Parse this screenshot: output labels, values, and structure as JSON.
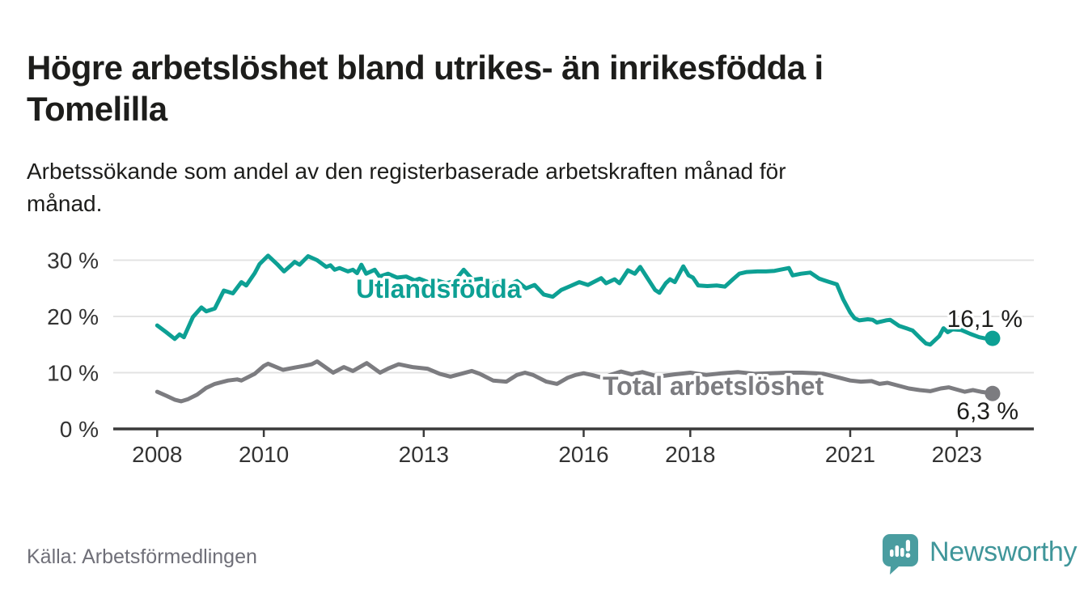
{
  "header": {
    "title": "Högre arbetslöshet bland utrikes- än inrikesfödda i\nTomelilla",
    "subtitle": "Arbetssökande som andel av den registerbaserade arbetskraften månad för\nmånad."
  },
  "footer": {
    "source": "Källa: Arbetsförmedlingen"
  },
  "branding": {
    "name": "Newsworthy",
    "logo_icon": "bar-chart-speech-bubble-icon",
    "logo_color": "#4a9da0",
    "name_color": "#40969a"
  },
  "chart_data": {
    "type": "line",
    "title": "Högre arbetslöshet bland utrikes- än inrikesfödda i Tomelilla",
    "xlabel": "",
    "ylabel": "Arbetssökande som andel av den registerbaserade arbetskraften",
    "grid": true,
    "legend_position": "inline-labels",
    "x_axis": {
      "unit": "year",
      "range": [
        2007.2,
        2024.4
      ],
      "ticks": [
        {
          "value": 2008,
          "label": "2008"
        },
        {
          "value": 2010,
          "label": "2010"
        },
        {
          "value": 2013,
          "label": "2013"
        },
        {
          "value": 2016,
          "label": "2016"
        },
        {
          "value": 2018,
          "label": "2018"
        },
        {
          "value": 2021,
          "label": "2021"
        },
        {
          "value": 2023,
          "label": "2023"
        }
      ]
    },
    "y_axis": {
      "unit": "%",
      "range": [
        0,
        32
      ],
      "ticks": [
        {
          "value": 0,
          "label": "0 %"
        },
        {
          "value": 10,
          "label": "10 %"
        },
        {
          "value": 20,
          "label": "20 %"
        },
        {
          "value": 30,
          "label": "30 %"
        }
      ]
    },
    "series": [
      {
        "name": "Utlandsfödda",
        "color": "#0da094",
        "end_value": 16.1,
        "end_label": "16,1 %",
        "points": [
          [
            2008.0,
            18.4
          ],
          [
            2008.17,
            17.2
          ],
          [
            2008.33,
            16.0
          ],
          [
            2008.42,
            16.8
          ],
          [
            2008.5,
            16.3
          ],
          [
            2008.67,
            19.9
          ],
          [
            2008.83,
            21.6
          ],
          [
            2008.92,
            20.9
          ],
          [
            2009.08,
            21.4
          ],
          [
            2009.25,
            24.6
          ],
          [
            2009.42,
            24.1
          ],
          [
            2009.58,
            26.1
          ],
          [
            2009.67,
            25.5
          ],
          [
            2009.83,
            27.7
          ],
          [
            2009.92,
            29.3
          ],
          [
            2010.08,
            30.8
          ],
          [
            2010.25,
            29.3
          ],
          [
            2010.38,
            28.0
          ],
          [
            2010.5,
            29.0
          ],
          [
            2010.58,
            29.7
          ],
          [
            2010.67,
            29.2
          ],
          [
            2010.83,
            30.7
          ],
          [
            2011.0,
            30.0
          ],
          [
            2011.17,
            28.8
          ],
          [
            2011.25,
            29.1
          ],
          [
            2011.33,
            28.3
          ],
          [
            2011.42,
            28.6
          ],
          [
            2011.58,
            28.0
          ],
          [
            2011.67,
            28.3
          ],
          [
            2011.75,
            27.7
          ],
          [
            2011.83,
            29.2
          ],
          [
            2011.92,
            27.6
          ],
          [
            2012.08,
            28.3
          ],
          [
            2012.17,
            27.1
          ],
          [
            2012.33,
            27.6
          ],
          [
            2012.5,
            26.9
          ],
          [
            2012.67,
            27.1
          ],
          [
            2012.83,
            26.4
          ],
          [
            2012.92,
            26.7
          ],
          [
            2013.08,
            26.1
          ],
          [
            2013.25,
            26.4
          ],
          [
            2013.42,
            25.9
          ],
          [
            2013.58,
            26.3
          ],
          [
            2013.75,
            28.3
          ],
          [
            2013.92,
            26.5
          ],
          [
            2014.08,
            26.7
          ],
          [
            2014.25,
            25.7
          ],
          [
            2014.42,
            26.1
          ],
          [
            2014.58,
            25.5
          ],
          [
            2014.75,
            26.3
          ],
          [
            2014.92,
            25.0
          ],
          [
            2015.08,
            25.6
          ],
          [
            2015.25,
            23.9
          ],
          [
            2015.42,
            23.5
          ],
          [
            2015.58,
            24.7
          ],
          [
            2015.75,
            25.4
          ],
          [
            2015.92,
            26.1
          ],
          [
            2016.08,
            25.6
          ],
          [
            2016.33,
            26.8
          ],
          [
            2016.42,
            25.9
          ],
          [
            2016.58,
            26.6
          ],
          [
            2016.67,
            25.9
          ],
          [
            2016.83,
            28.2
          ],
          [
            2016.96,
            27.6
          ],
          [
            2017.06,
            28.8
          ],
          [
            2017.19,
            26.9
          ],
          [
            2017.34,
            24.7
          ],
          [
            2017.42,
            24.2
          ],
          [
            2017.54,
            25.9
          ],
          [
            2017.62,
            26.6
          ],
          [
            2017.71,
            26.1
          ],
          [
            2017.87,
            28.9
          ],
          [
            2017.97,
            27.3
          ],
          [
            2018.05,
            26.9
          ],
          [
            2018.15,
            25.5
          ],
          [
            2018.32,
            25.4
          ],
          [
            2018.5,
            25.5
          ],
          [
            2018.65,
            25.3
          ],
          [
            2018.8,
            26.6
          ],
          [
            2018.92,
            27.6
          ],
          [
            2019.06,
            27.9
          ],
          [
            2019.26,
            28.0
          ],
          [
            2019.42,
            28.0
          ],
          [
            2019.58,
            28.1
          ],
          [
            2019.85,
            28.6
          ],
          [
            2019.92,
            27.3
          ],
          [
            2020.08,
            27.6
          ],
          [
            2020.25,
            27.8
          ],
          [
            2020.42,
            26.7
          ],
          [
            2020.58,
            26.2
          ],
          [
            2020.75,
            25.7
          ],
          [
            2020.87,
            23.0
          ],
          [
            2021.0,
            20.7
          ],
          [
            2021.08,
            19.7
          ],
          [
            2021.17,
            19.3
          ],
          [
            2021.33,
            19.5
          ],
          [
            2021.42,
            19.4
          ],
          [
            2021.5,
            18.9
          ],
          [
            2021.67,
            19.3
          ],
          [
            2021.75,
            19.4
          ],
          [
            2021.92,
            18.3
          ],
          [
            2022.08,
            17.8
          ],
          [
            2022.17,
            17.5
          ],
          [
            2022.33,
            16.0
          ],
          [
            2022.42,
            15.2
          ],
          [
            2022.5,
            15.0
          ],
          [
            2022.67,
            16.5
          ],
          [
            2022.75,
            17.9
          ],
          [
            2022.83,
            17.2
          ],
          [
            2022.92,
            17.7
          ],
          [
            2023.08,
            17.6
          ],
          [
            2023.25,
            16.9
          ],
          [
            2023.42,
            16.3
          ],
          [
            2023.58,
            16.0
          ],
          [
            2023.67,
            16.1
          ]
        ]
      },
      {
        "name": "Total arbetslöshet",
        "color": "#7c7c80",
        "end_value": 6.3,
        "end_label": "6,3 %",
        "points": [
          [
            2008.0,
            6.6
          ],
          [
            2008.17,
            5.9
          ],
          [
            2008.33,
            5.2
          ],
          [
            2008.45,
            4.9
          ],
          [
            2008.58,
            5.3
          ],
          [
            2008.75,
            6.1
          ],
          [
            2008.92,
            7.3
          ],
          [
            2009.08,
            8.0
          ],
          [
            2009.33,
            8.6
          ],
          [
            2009.5,
            8.8
          ],
          [
            2009.58,
            8.6
          ],
          [
            2009.83,
            9.8
          ],
          [
            2010.0,
            11.2
          ],
          [
            2010.08,
            11.6
          ],
          [
            2010.36,
            10.5
          ],
          [
            2010.58,
            10.9
          ],
          [
            2010.75,
            11.2
          ],
          [
            2010.9,
            11.5
          ],
          [
            2011.0,
            12.0
          ],
          [
            2011.15,
            11.0
          ],
          [
            2011.3,
            10.0
          ],
          [
            2011.5,
            11.0
          ],
          [
            2011.67,
            10.3
          ],
          [
            2011.93,
            11.7
          ],
          [
            2012.18,
            10.0
          ],
          [
            2012.35,
            10.8
          ],
          [
            2012.53,
            11.5
          ],
          [
            2012.79,
            11.0
          ],
          [
            2013.07,
            10.7
          ],
          [
            2013.3,
            9.8
          ],
          [
            2013.5,
            9.3
          ],
          [
            2013.7,
            9.8
          ],
          [
            2013.9,
            10.3
          ],
          [
            2014.05,
            9.8
          ],
          [
            2014.3,
            8.6
          ],
          [
            2014.55,
            8.4
          ],
          [
            2014.75,
            9.6
          ],
          [
            2014.9,
            10.0
          ],
          [
            2015.05,
            9.6
          ],
          [
            2015.3,
            8.4
          ],
          [
            2015.5,
            8.0
          ],
          [
            2015.7,
            9.1
          ],
          [
            2015.85,
            9.6
          ],
          [
            2016.0,
            9.9
          ],
          [
            2016.15,
            9.6
          ],
          [
            2016.35,
            9.1
          ],
          [
            2016.5,
            9.6
          ],
          [
            2016.7,
            10.2
          ],
          [
            2016.9,
            9.7
          ],
          [
            2017.1,
            10.1
          ],
          [
            2017.4,
            9.3
          ],
          [
            2017.7,
            9.7
          ],
          [
            2018.0,
            10.0
          ],
          [
            2018.3,
            9.6
          ],
          [
            2018.6,
            9.9
          ],
          [
            2018.9,
            10.1
          ],
          [
            2019.2,
            9.8
          ],
          [
            2019.5,
            9.9
          ],
          [
            2019.8,
            10.0
          ],
          [
            2020.1,
            10.0
          ],
          [
            2020.35,
            9.9
          ],
          [
            2020.5,
            9.8
          ],
          [
            2020.8,
            9.1
          ],
          [
            2021.0,
            8.6
          ],
          [
            2021.2,
            8.4
          ],
          [
            2021.4,
            8.5
          ],
          [
            2021.55,
            8.0
          ],
          [
            2021.7,
            8.2
          ],
          [
            2021.9,
            7.7
          ],
          [
            2022.1,
            7.2
          ],
          [
            2022.3,
            6.9
          ],
          [
            2022.5,
            6.7
          ],
          [
            2022.7,
            7.2
          ],
          [
            2022.85,
            7.4
          ],
          [
            2023.0,
            7.0
          ],
          [
            2023.15,
            6.6
          ],
          [
            2023.3,
            6.9
          ],
          [
            2023.45,
            6.6
          ],
          [
            2023.67,
            6.3
          ]
        ]
      }
    ]
  }
}
